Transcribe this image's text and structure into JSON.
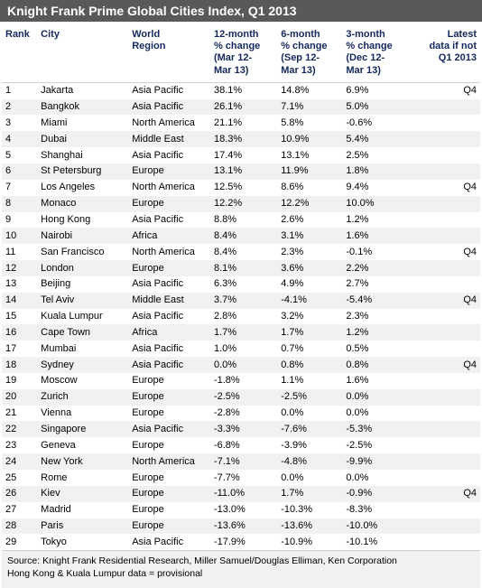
{
  "title": "Knight Frank Prime Global Cities Index, Q1 2013",
  "colors": {
    "title_bg": "#58595b",
    "title_text": "#ffffff",
    "header_text": "#14285f",
    "row_alt_bg": "#f2f0f0",
    "border": "#d0d0d0",
    "body_text": "#000000",
    "background": "#ffffff"
  },
  "columns": [
    {
      "key": "rank",
      "label": "Rank",
      "align": "left"
    },
    {
      "key": "city",
      "label": "City",
      "align": "left"
    },
    {
      "key": "region",
      "label": "World\nRegion",
      "align": "left"
    },
    {
      "key": "m12",
      "label": "12-month\n% change\n(Mar 12-\nMar 13)",
      "align": "left"
    },
    {
      "key": "m6",
      "label": "6-month\n% change\n(Sep 12-\nMar 13)",
      "align": "left"
    },
    {
      "key": "m3",
      "label": "3-month\n% change\n(Dec 12-\nMar 13)",
      "align": "left"
    },
    {
      "key": "latest",
      "label": "Latest\ndata if not\nQ1 2013",
      "align": "right"
    }
  ],
  "rows": [
    {
      "rank": "1",
      "city": "Jakarta",
      "region": "Asia Pacific",
      "m12": "38.1%",
      "m6": "14.8%",
      "m3": "6.9%",
      "latest": "Q4"
    },
    {
      "rank": "2",
      "city": "Bangkok",
      "region": "Asia Pacific",
      "m12": "26.1%",
      "m6": "7.1%",
      "m3": "5.0%",
      "latest": ""
    },
    {
      "rank": "3",
      "city": "Miami",
      "region": "North America",
      "m12": "21.1%",
      "m6": "5.8%",
      "m3": "-0.6%",
      "latest": ""
    },
    {
      "rank": "4",
      "city": "Dubai",
      "region": "Middle East",
      "m12": "18.3%",
      "m6": "10.9%",
      "m3": "5.4%",
      "latest": ""
    },
    {
      "rank": "5",
      "city": "Shanghai",
      "region": "Asia Pacific",
      "m12": "17.4%",
      "m6": "13.1%",
      "m3": "2.5%",
      "latest": ""
    },
    {
      "rank": "6",
      "city": "St Petersburg",
      "region": "Europe",
      "m12": "13.1%",
      "m6": "11.9%",
      "m3": "1.8%",
      "latest": ""
    },
    {
      "rank": "7",
      "city": "Los Angeles",
      "region": "North America",
      "m12": "12.5%",
      "m6": "8.6%",
      "m3": "9.4%",
      "latest": "Q4"
    },
    {
      "rank": "8",
      "city": "Monaco",
      "region": "Europe",
      "m12": "12.2%",
      "m6": "12.2%",
      "m3": "10.0%",
      "latest": ""
    },
    {
      "rank": "9",
      "city": "Hong Kong",
      "region": "Asia Pacific",
      "m12": "8.8%",
      "m6": "2.6%",
      "m3": "1.2%",
      "latest": ""
    },
    {
      "rank": "10",
      "city": "Nairobi",
      "region": "Africa",
      "m12": "8.4%",
      "m6": "3.1%",
      "m3": "1.6%",
      "latest": ""
    },
    {
      "rank": "11",
      "city": "San Francisco",
      "region": "North America",
      "m12": "8.4%",
      "m6": "2.3%",
      "m3": "-0.1%",
      "latest": "Q4"
    },
    {
      "rank": "12",
      "city": "London",
      "region": "Europe",
      "m12": "8.1%",
      "m6": "3.6%",
      "m3": "2.2%",
      "latest": ""
    },
    {
      "rank": "13",
      "city": "Beijing",
      "region": "Asia Pacific",
      "m12": "6.3%",
      "m6": "4.9%",
      "m3": "2.7%",
      "latest": ""
    },
    {
      "rank": "14",
      "city": "Tel Aviv",
      "region": "Middle East",
      "m12": "3.7%",
      "m6": "-4.1%",
      "m3": "-5.4%",
      "latest": "Q4"
    },
    {
      "rank": "15",
      "city": "Kuala Lumpur",
      "region": "Asia Pacific",
      "m12": "2.8%",
      "m6": "3.2%",
      "m3": "2.3%",
      "latest": ""
    },
    {
      "rank": "16",
      "city": "Cape Town",
      "region": "Africa",
      "m12": "1.7%",
      "m6": "1.7%",
      "m3": "1.2%",
      "latest": ""
    },
    {
      "rank": "17",
      "city": "Mumbai",
      "region": "Asia Pacific",
      "m12": "1.0%",
      "m6": "0.7%",
      "m3": "0.5%",
      "latest": ""
    },
    {
      "rank": "18",
      "city": "Sydney",
      "region": "Asia Pacific",
      "m12": "0.0%",
      "m6": "0.8%",
      "m3": "0.8%",
      "latest": "Q4"
    },
    {
      "rank": "19",
      "city": "Moscow",
      "region": "Europe",
      "m12": "-1.8%",
      "m6": "1.1%",
      "m3": "1.6%",
      "latest": ""
    },
    {
      "rank": "20",
      "city": "Zurich",
      "region": "Europe",
      "m12": "-2.5%",
      "m6": "-2.5%",
      "m3": "0.0%",
      "latest": ""
    },
    {
      "rank": "21",
      "city": "Vienna",
      "region": "Europe",
      "m12": "-2.8%",
      "m6": "0.0%",
      "m3": "0.0%",
      "latest": ""
    },
    {
      "rank": "22",
      "city": "Singapore",
      "region": "Asia Pacific",
      "m12": "-3.3%",
      "m6": "-7.6%",
      "m3": "-5.3%",
      "latest": ""
    },
    {
      "rank": "23",
      "city": "Geneva",
      "region": "Europe",
      "m12": "-6.8%",
      "m6": "-3.9%",
      "m3": "-2.5%",
      "latest": ""
    },
    {
      "rank": "24",
      "city": "New York",
      "region": "North America",
      "m12": "-7.1%",
      "m6": "-4.8%",
      "m3": "-9.9%",
      "latest": ""
    },
    {
      "rank": "25",
      "city": "Rome",
      "region": "Europe",
      "m12": "-7.7%",
      "m6": "0.0%",
      "m3": "0.0%",
      "latest": ""
    },
    {
      "rank": "26",
      "city": "Kiev",
      "region": "Europe",
      "m12": "-11.0%",
      "m6": "1.7%",
      "m3": "-0.9%",
      "latest": "Q4"
    },
    {
      "rank": "27",
      "city": "Madrid",
      "region": "Europe",
      "m12": "-13.0%",
      "m6": "-10.3%",
      "m3": "-8.3%",
      "latest": ""
    },
    {
      "rank": "28",
      "city": "Paris",
      "region": "Europe",
      "m12": "-13.6%",
      "m6": "-13.6%",
      "m3": "-10.0%",
      "latest": ""
    },
    {
      "rank": "29",
      "city": "Tokyo",
      "region": "Asia Pacific",
      "m12": "-17.9%",
      "m6": "-10.9%",
      "m3": "-10.1%",
      "latest": ""
    }
  ],
  "footer": {
    "line1": "Source: Knight Frank Residential Research, Miller Samuel/Douglas Elliman, Ken Corporation",
    "line2": "Hong Kong & Kuala Lumpur data = provisional"
  }
}
